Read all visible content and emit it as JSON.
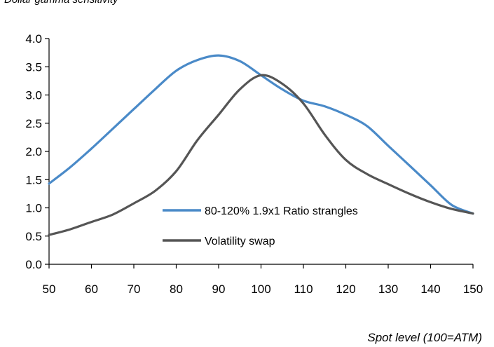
{
  "chart_data": {
    "type": "line",
    "title": "Dollar gamma sensitivity",
    "xlabel": "Spot level (100=ATM)",
    "ylabel": "",
    "xlim": [
      50,
      150
    ],
    "ylim": [
      0,
      4
    ],
    "x_ticks": [
      "50",
      "60",
      "70",
      "80",
      "90",
      "100",
      "110",
      "120",
      "130",
      "140",
      "150"
    ],
    "y_ticks": [
      "0.0",
      "0.5",
      "1.0",
      "1.5",
      "2.0",
      "2.5",
      "3.0",
      "3.5",
      "4.0"
    ],
    "grid": false,
    "legend_position": "center-right",
    "series": [
      {
        "name": "80-120% 1.9x1 Ratio strangles",
        "color": "#4a8ac8",
        "x": [
          50,
          55,
          60,
          65,
          70,
          75,
          80,
          85,
          90,
          95,
          100,
          105,
          110,
          115,
          120,
          125,
          130,
          135,
          140,
          145,
          150
        ],
        "y": [
          1.43,
          1.72,
          2.05,
          2.4,
          2.75,
          3.1,
          3.43,
          3.62,
          3.7,
          3.6,
          3.35,
          3.1,
          2.9,
          2.8,
          2.65,
          2.45,
          2.1,
          1.75,
          1.4,
          1.05,
          0.9
        ]
      },
      {
        "name": "Volatility swap",
        "color": "#555555",
        "x": [
          50,
          55,
          60,
          65,
          70,
          75,
          80,
          85,
          90,
          95,
          100,
          105,
          110,
          115,
          120,
          125,
          130,
          135,
          140,
          145,
          150
        ],
        "y": [
          0.52,
          0.62,
          0.75,
          0.88,
          1.08,
          1.3,
          1.65,
          2.2,
          2.65,
          3.1,
          3.35,
          3.2,
          2.85,
          2.3,
          1.85,
          1.6,
          1.42,
          1.25,
          1.1,
          0.98,
          0.9
        ]
      }
    ]
  }
}
